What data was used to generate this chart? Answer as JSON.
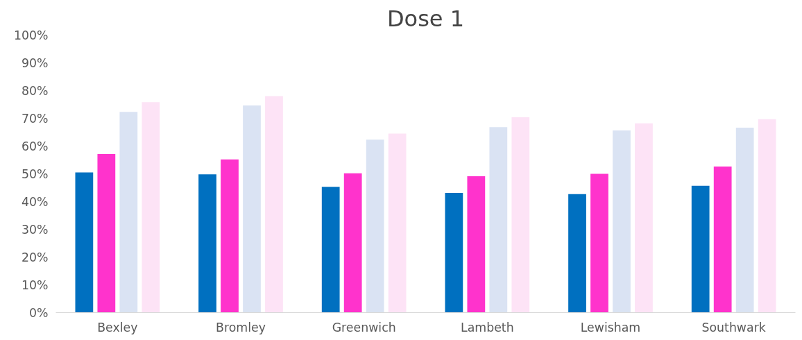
{
  "chart_data": {
    "type": "bar",
    "title": "Dose 1",
    "categories": [
      "Bexley",
      "Bromley",
      "Greenwich",
      "Lambeth",
      "Lewisham",
      "Southwark"
    ],
    "series": [
      {
        "color": "#0070c0",
        "values": [
          50.5,
          49.8,
          45.3,
          43.1,
          42.7,
          45.7
        ]
      },
      {
        "color": "#ff33cc",
        "values": [
          57.1,
          55.2,
          50.2,
          49.1,
          50.0,
          52.6
        ]
      },
      {
        "color": "#dae3f3",
        "values": [
          72.3,
          74.6,
          62.3,
          66.8,
          65.6,
          66.6
        ]
      },
      {
        "color": "#fde3f6",
        "values": [
          75.8,
          78.0,
          64.5,
          70.4,
          68.2,
          69.7
        ]
      }
    ],
    "ylim": [
      0,
      100
    ],
    "yticks": [
      {
        "value": 0,
        "label": "0%"
      },
      {
        "value": 10,
        "label": "10%"
      },
      {
        "value": 20,
        "label": "20%"
      },
      {
        "value": 30,
        "label": "30%"
      },
      {
        "value": 40,
        "label": "40%"
      },
      {
        "value": 50,
        "label": "50%"
      },
      {
        "value": 60,
        "label": "60%"
      },
      {
        "value": 70,
        "label": "70%"
      },
      {
        "value": 80,
        "label": "80%"
      },
      {
        "value": 90,
        "label": "90%"
      },
      {
        "value": 100,
        "label": "100%"
      }
    ],
    "grid": false
  }
}
